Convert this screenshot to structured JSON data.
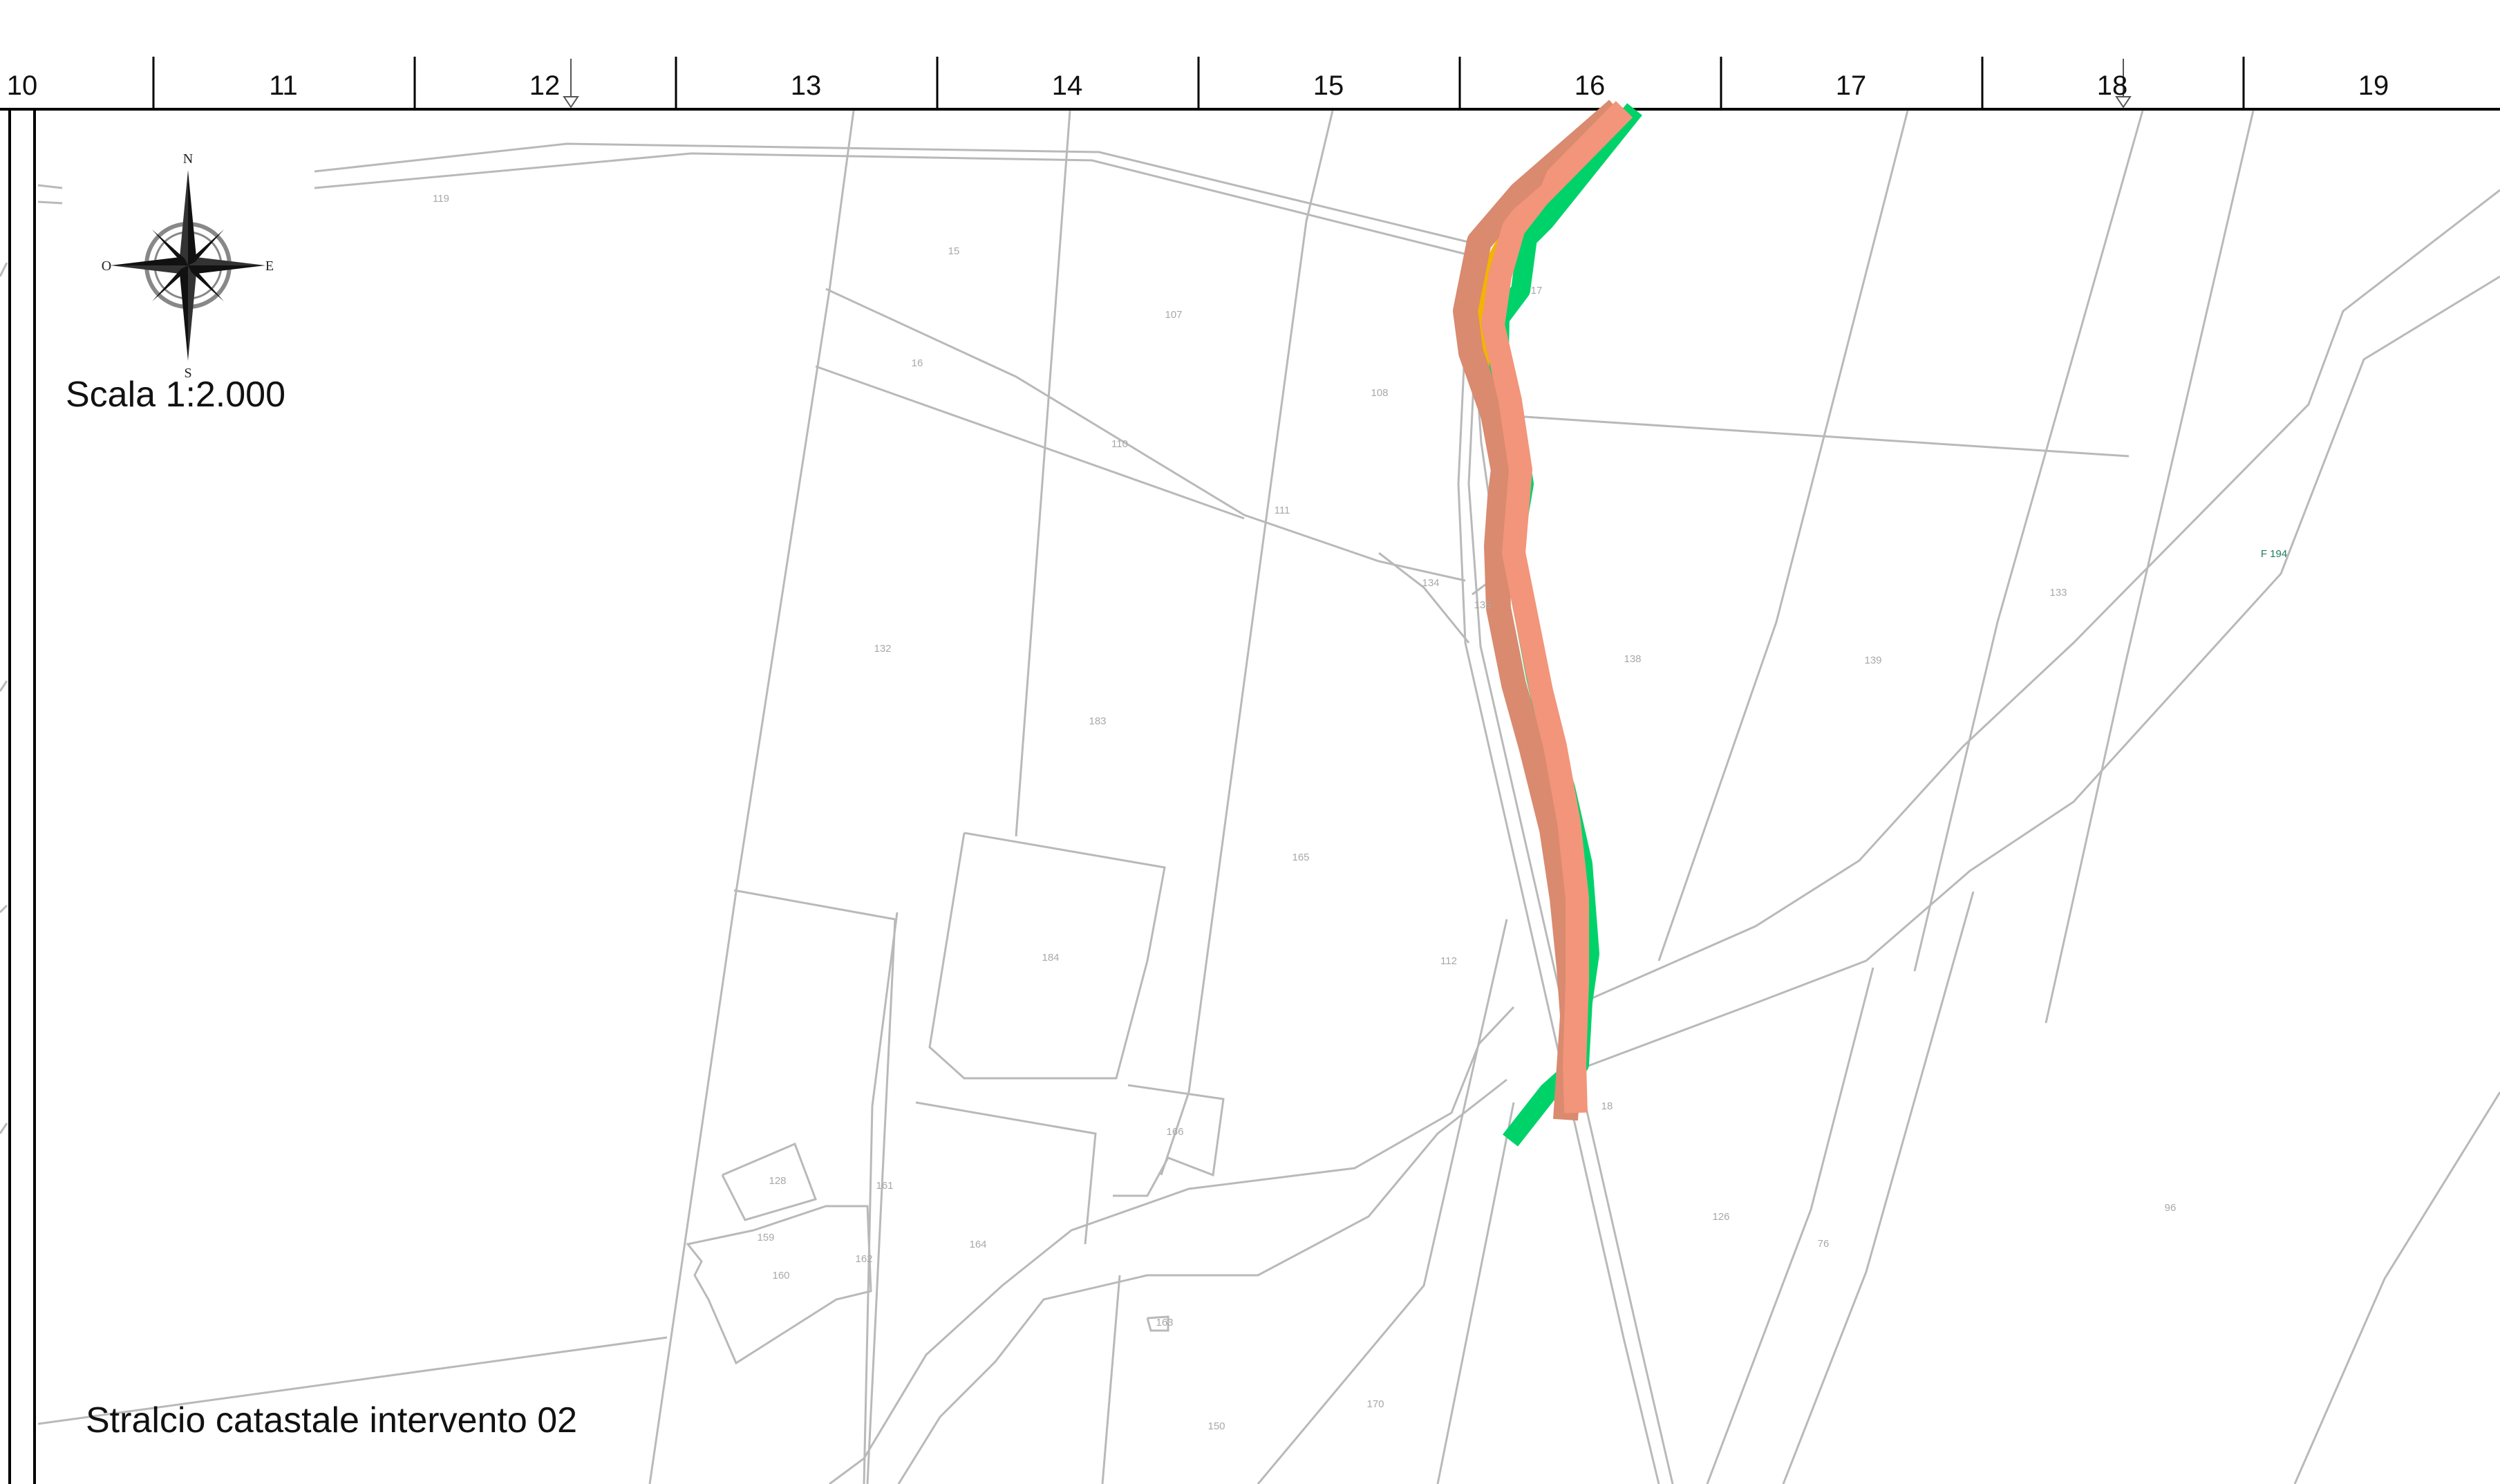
{
  "ruler": {
    "labels": [
      "10",
      "11",
      "12",
      "13",
      "14",
      "15",
      "16",
      "17",
      "18",
      "19"
    ]
  },
  "scale_text": "Scala 1:2.000",
  "caption": "Stralcio catastale intervento 02",
  "compass": {
    "n": "N",
    "s": "S",
    "e": "E",
    "w": "O"
  },
  "sheet_label": "F 194",
  "parcels": {
    "p119": "119",
    "p15": "15",
    "p107": "107",
    "p16": "16",
    "p17": "17",
    "p108": "108",
    "p110": "110",
    "p111": "111",
    "p134": "134",
    "p135": "135",
    "p138": "138",
    "p139": "139",
    "p133": "133",
    "p132": "132",
    "p183": "183",
    "p165": "165",
    "p112": "112",
    "p184": "184",
    "p166": "166",
    "p18": "18",
    "p128": "128",
    "p161": "161",
    "p159": "159",
    "p162": "162",
    "p160": "160",
    "p164": "164",
    "p163": "163",
    "p126": "126",
    "p76": "76",
    "p96": "96",
    "p170": "170",
    "p150": "150"
  },
  "colors": {
    "background": "#ffffff",
    "frame": "#000000",
    "parcel_lines": "#b9b9b9",
    "green_band": "#00d26a",
    "salmon_band": "#f2957a",
    "dark_salmon_band": "#d98a6f",
    "orange_fill": "#f3b400"
  }
}
